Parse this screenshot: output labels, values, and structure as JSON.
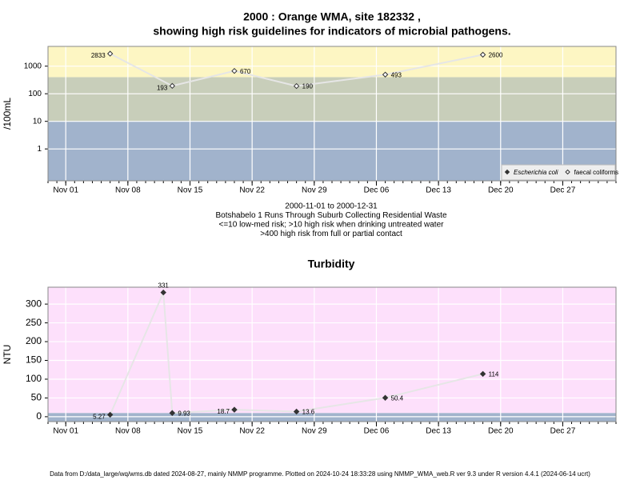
{
  "chart_data": [
    {
      "type": "line",
      "title": [
        "2000 : Orange WMA, site 182332 ,",
        "showing high risk guidelines for indicators of microbial pathogens."
      ],
      "subtitle": [
        "2000-11-01 to 2000-12-31",
        "Botshabelo 1 Runs Through Suburb Collecting Residential Waste",
        "<=10 low-med risk; >10 high risk when drinking untreated water",
        ">400 high risk from full or partial contact"
      ],
      "y_label": "/100mL",
      "log_scale": true,
      "grid": true,
      "legend_position": "lower right",
      "x": [
        "2000-11-06",
        "2000-11-13",
        "2000-11-20",
        "2000-11-27",
        "2000-12-07",
        "2000-12-18"
      ],
      "series": [
        {
          "name": "Escherichia coli",
          "color": "#333333",
          "marker": "filled-diamond",
          "values": [
            null,
            null,
            null,
            null,
            null,
            null
          ]
        },
        {
          "name": "faecal coliforms",
          "color": "#333333",
          "marker": "open-diamond",
          "values": [
            2833,
            193,
            670,
            190,
            493,
            2600
          ]
        }
      ],
      "bands": [
        {
          "from": 0.07,
          "to": 10,
          "color": "#a1b3cc"
        },
        {
          "from": 10,
          "to": 400,
          "color": "#c8ceba"
        },
        {
          "from": 400,
          "to": 5200,
          "color": "#fdf6c3"
        }
      ],
      "xlim": [
        "2000-10-30",
        "2001-01-02"
      ],
      "xticks": [
        {
          "value": "2000-11-01",
          "label": "Nov 01"
        },
        {
          "value": "2000-11-08",
          "label": "Nov 08"
        },
        {
          "value": "2000-11-15",
          "label": "Nov 15"
        },
        {
          "value": "2000-11-22",
          "label": "Nov 22"
        },
        {
          "value": "2000-11-29",
          "label": "Nov 29"
        },
        {
          "value": "2000-12-06",
          "label": "Dec 06"
        },
        {
          "value": "2000-12-13",
          "label": "Dec 13"
        },
        {
          "value": "2000-12-20",
          "label": "Dec 20"
        },
        {
          "value": "2000-12-27",
          "label": "Dec 27"
        }
      ],
      "ylim": [
        0.07,
        5200
      ],
      "yticks": [
        1,
        10,
        100,
        1000
      ]
    },
    {
      "type": "line",
      "title": "Turbidity",
      "y_label": "NTU",
      "grid": true,
      "x": [
        "2000-11-06",
        "2000-11-12",
        "2000-11-13",
        "2000-11-20",
        "2000-11-27",
        "2000-12-07",
        "2000-12-18"
      ],
      "series": [
        {
          "name": "Turbidity",
          "color": "#333333",
          "marker": "filled-diamond",
          "values": [
            5.27,
            331,
            9.93,
            18.7,
            13.6,
            50.4,
            114
          ]
        }
      ],
      "bands": [
        {
          "from": -13,
          "to": 10,
          "color": "#a1b3cc"
        },
        {
          "from": 10,
          "to": 345,
          "color": "#fde0fb"
        }
      ],
      "xlim": [
        "2000-10-30",
        "2001-01-02"
      ],
      "xticks": [
        {
          "value": "2000-11-01",
          "label": "Nov 01"
        },
        {
          "value": "2000-11-08",
          "label": "Nov 08"
        },
        {
          "value": "2000-11-15",
          "label": "Nov 15"
        },
        {
          "value": "2000-11-22",
          "label": "Nov 22"
        },
        {
          "value": "2000-11-29",
          "label": "Nov 29"
        },
        {
          "value": "2000-12-06",
          "label": "Dec 06"
        },
        {
          "value": "2000-12-13",
          "label": "Dec 13"
        },
        {
          "value": "2000-12-20",
          "label": "Dec 20"
        },
        {
          "value": "2000-12-27",
          "label": "Dec 27"
        }
      ],
      "ylim": [
        -13,
        345
      ],
      "yticks": [
        0,
        50,
        100,
        150,
        200,
        250,
        300
      ]
    }
  ],
  "footer": "Data from D:/data_large/wq/wms.db dated 2024-08-27, mainly NMMP programme. Plotted on 2024-10-24 18:33:28 using NMMP_WMA_web.R ver 9.3 under R version 4.4.1 (2024-06-14 ucrt)"
}
